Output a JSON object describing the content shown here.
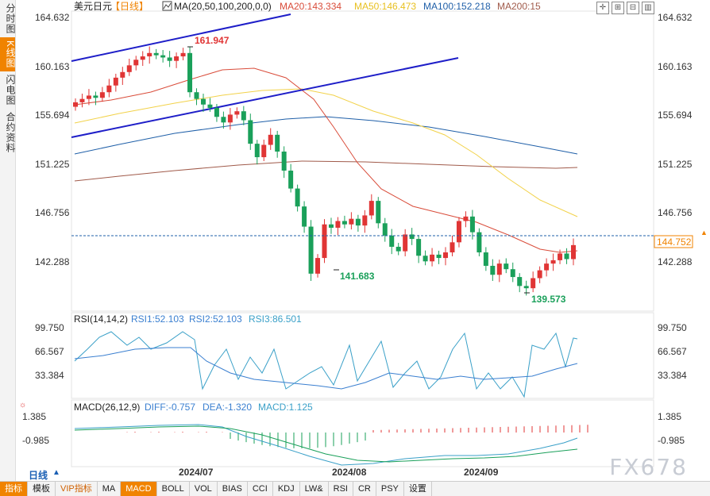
{
  "sidebar": {
    "items": [
      {
        "label": "分时图",
        "active": false
      },
      {
        "label": "K线图",
        "active": true
      },
      {
        "label": "闪电图",
        "active": false
      },
      {
        "label": "合约资料",
        "active": false
      }
    ]
  },
  "header": {
    "symbol": "美元日元",
    "period": "【日线】",
    "ma_label": "MA(20,50,100,200,0,0)",
    "ma20": "MA20:143.334",
    "ma50": "MA50:146.473",
    "ma100": "MA100:152.218",
    "ma200": "MA200:15"
  },
  "colors": {
    "up": "#e03535",
    "down": "#1aa05a",
    "ma20": "#d94c3a",
    "ma50": "#f2d24a",
    "ma100": "#1f5fa8",
    "ma200": "#a05a4a",
    "trend": "#1e1ec8",
    "rsi1": "#3a7fd0",
    "rsi3": "#3aa0c8",
    "accent": "#f08300"
  },
  "price_axis": {
    "ticks": [
      "164.632",
      "160.163",
      "155.694",
      "151.225",
      "146.756",
      "142.288"
    ]
  },
  "current_price": "144.752",
  "annotations": {
    "high": "161.947",
    "low1": "141.683",
    "low2": "139.573"
  },
  "rsi": {
    "label": "RSI(14,14,2)",
    "rsi1": "RSI1:52.103",
    "rsi2": "RSI2:52.103",
    "rsi3": "RSI3:86.501",
    "ticks": [
      "99.750",
      "66.567",
      "33.384"
    ]
  },
  "macd": {
    "label": "MACD(26,12,9)",
    "diff": "DIFF:-0.757",
    "dea": "DEA:-1.320",
    "macd": "MACD:1.125",
    "ticks": [
      "1.385",
      "-0.985"
    ]
  },
  "time_axis": {
    "labels": [
      "2024/07",
      "2024/08",
      "2024/09"
    ]
  },
  "bottom_bar": {
    "period": "日线",
    "items": [
      "指标",
      "模板",
      "VIP指标",
      "MA",
      "MACD",
      "BOLL",
      "VOL",
      "BIAS",
      "CCI",
      "KDJ",
      "LW&",
      "RSI",
      "CR",
      "PSY",
      "设置"
    ]
  },
  "watermark": "FX678",
  "chart_data": {
    "type": "candlestick",
    "symbol": "USD/JPY",
    "x_range": [
      "2024-06",
      "2024-09"
    ],
    "ylim": [
      139.0,
      165.5
    ],
    "close_series": [
      157.5,
      157.8,
      158.1,
      157.9,
      158.4,
      159.0,
      159.7,
      160.2,
      160.8,
      161.3,
      161.6,
      161.9,
      161.7,
      161.5,
      161.2,
      161.6,
      161.9,
      158.4,
      157.8,
      157.3,
      157.0,
      156.2,
      155.7,
      156.4,
      156.7,
      155.9,
      153.8,
      152.6,
      153.7,
      154.6,
      153.1,
      151.4,
      149.8,
      148.2,
      146.4,
      142.2,
      143.6,
      146.6,
      146.3,
      146.9,
      146.6,
      147.1,
      146.5,
      147.4,
      148.7,
      146.7,
      145.6,
      144.6,
      144.2,
      145.7,
      145.3,
      143.8,
      143.3,
      143.9,
      143.6,
      144.1,
      145.0,
      146.9,
      147.3,
      145.9,
      144.1,
      142.9,
      142.1,
      143.1,
      142.6,
      141.9,
      141.1,
      140.9,
      141.8,
      142.5,
      143.1,
      143.4,
      144.0,
      143.5,
      144.75
    ],
    "ma20_end": 143.334,
    "ma50_end": 146.473,
    "ma100_end": 152.218,
    "series": [
      {
        "name": "MA20",
        "value": 143.334
      },
      {
        "name": "MA50",
        "value": 146.473
      },
      {
        "name": "MA100",
        "value": 152.218
      },
      {
        "name": "MA200",
        "value": 15
      }
    ],
    "annotations": [
      {
        "label": "161.947",
        "value": 161.947
      },
      {
        "label": "141.683",
        "value": 141.683
      },
      {
        "label": "139.573",
        "value": 139.573
      }
    ],
    "rsi": {
      "rsi1": 52.103,
      "rsi2": 52.103,
      "rsi3": 86.501
    },
    "macd": {
      "diff": -0.757,
      "dea": -1.32,
      "macd": 1.125
    }
  }
}
